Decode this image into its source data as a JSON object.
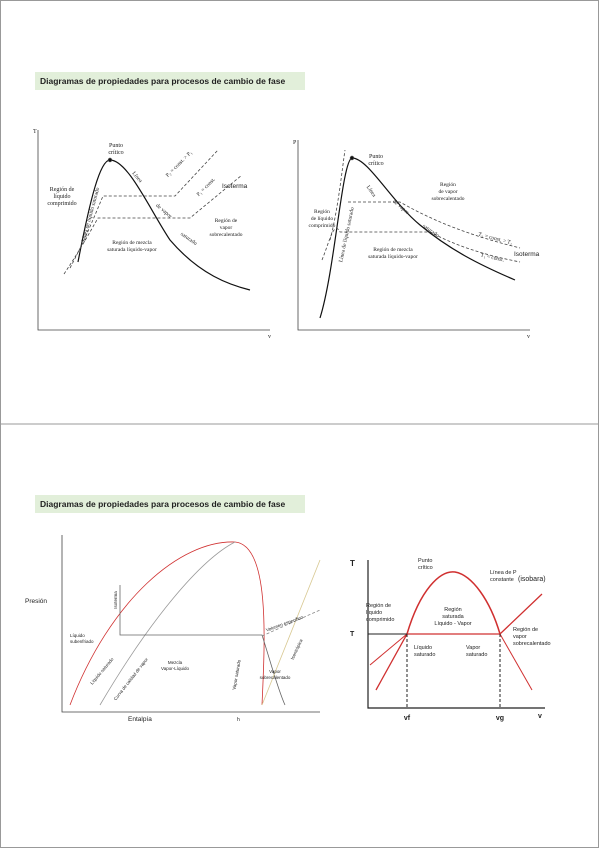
{
  "slides": [
    {
      "title": "Diagramas de propiedades para procesos de cambio de fase",
      "diagrams": [
        {
          "y_axis": "T",
          "x_axis": "v",
          "critical_point": [
            "Punto",
            "crítico"
          ],
          "compressed_liquid": [
            "Región de",
            "líquido",
            "comprimido"
          ],
          "saturated_liquid_line": "Línea de líquido saturado",
          "saturated_vapor_line": [
            "Línea",
            "de vapor",
            "saturado"
          ],
          "isobar_2": "P₂ = const. > P₁",
          "isobar_1": "P₁ = const.",
          "isotherm": "Isoterma",
          "superheated_vapor": [
            "Región de",
            "vapor",
            "sobrecalentado"
          ],
          "mixture": [
            "Región de mezcla",
            "saturada líquido-vapor"
          ]
        },
        {
          "y_axis": "P",
          "x_axis": "v",
          "critical_point": [
            "Punto",
            "crítico"
          ],
          "compressed_liquid": [
            "Región",
            "de líquido",
            "comprimido"
          ],
          "saturated_liquid_line": "Línea de líquido saturado",
          "saturated_vapor_line": [
            "Línea",
            "de vapor",
            "saturado"
          ],
          "superheated_vapor": [
            "Región",
            "de vapor",
            "sobrecalentado"
          ],
          "isotherm_2": "T₂ = const. > T₁",
          "isotherm_1": "T₁ = const.",
          "isotherm": "Isoterma",
          "mixture": [
            "Región de mezcla",
            "saturada líquido-vapor"
          ]
        }
      ]
    },
    {
      "title": "Diagramas de propiedades para procesos de cambio de fase",
      "diagrams": [
        {
          "y_axis": "Presión",
          "x_axis": "Entalpía",
          "h": "h",
          "isotherm": "Isoterma",
          "subcooled_liquid": [
            "Líquido",
            "subenfriado"
          ],
          "saturated_liquid": "Líquido saturado",
          "quality_curve": "Curva de calidad de vapor",
          "mixture": [
            "Mezcla",
            "Vapor-Líquido"
          ],
          "saturated_vapor": "Vapor saturado",
          "superheated_vapor": [
            "Vapor",
            "sobrecalentado"
          ],
          "isentropic": "Isentrópica",
          "specific_volume": "Volumen específico"
        },
        {
          "y_axis": "T",
          "t_level": "T",
          "x_axis": "v",
          "vf": "vf",
          "vg": "vg",
          "critical_point": [
            "Punto",
            "crítico"
          ],
          "isobar_line": [
            "Línea de P",
            "constante",
            "(isobara)"
          ],
          "compressed_liquid": [
            "Región de",
            "líquido",
            "comprimido"
          ],
          "saturated_region": [
            "Región",
            "saturada",
            "Líquido - Vapor"
          ],
          "superheated_vapor": [
            "Región de",
            "vapor",
            "sobrecalentado"
          ],
          "saturated_liquid": [
            "Líquido",
            "saturado"
          ],
          "saturated_vapor": [
            "Vapor",
            "saturado"
          ]
        }
      ]
    }
  ]
}
